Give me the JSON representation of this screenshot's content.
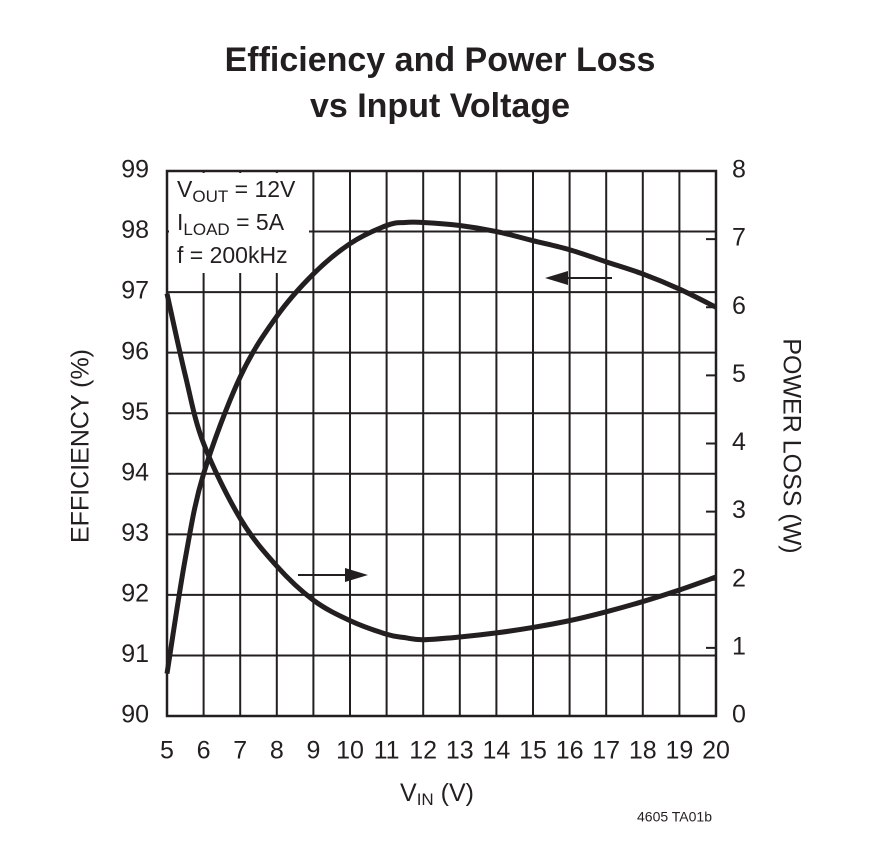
{
  "chart_data": {
    "type": "line",
    "title": [
      "Efficiency and Power Loss",
      "vs Input Voltage"
    ],
    "x_label": [
      {
        "text": "V"
      },
      {
        "text": "IN",
        "sub": true
      },
      {
        "text": " (V)"
      }
    ],
    "y_label": "EFFICIENCY (%)",
    "y2_label": "POWER LOSS (W)",
    "annotations": [
      [
        {
          "text": "V"
        },
        {
          "text": "OUT",
          "sub": true
        },
        {
          "text": " = 12V"
        }
      ],
      [
        {
          "text": "I"
        },
        {
          "text": "LOAD",
          "sub": true
        },
        {
          "text": " = 5A"
        }
      ],
      [
        {
          "text": "f = 200kHz"
        }
      ]
    ],
    "footnote": "4605 TA01b",
    "x": [
      5,
      5.5,
      6,
      7,
      8,
      9,
      10,
      11,
      11.5,
      12,
      13,
      14,
      15,
      16,
      17,
      18,
      19,
      20
    ],
    "series": [
      {
        "color": "#231f20",
        "values": [
          90.7,
          92.6,
          94.0,
          95.6,
          96.6,
          97.3,
          97.8,
          98.1,
          98.15,
          98.15,
          98.1,
          98.0,
          97.85,
          97.7,
          97.5,
          97.3,
          97.05,
          96.75
        ]
      },
      {
        "color": "#231f20",
        "axis": "y2",
        "values": [
          6.2,
          5.0,
          4.0,
          2.9,
          2.2,
          1.7,
          1.4,
          1.2,
          1.15,
          1.12,
          1.16,
          1.22,
          1.3,
          1.4,
          1.53,
          1.68,
          1.85,
          2.04
        ]
      }
    ],
    "xlim": [
      5,
      20
    ],
    "xticks": [
      5,
      6,
      7,
      8,
      9,
      10,
      11,
      12,
      13,
      14,
      15,
      16,
      17,
      18,
      19,
      20
    ],
    "ylim": [
      90,
      99
    ],
    "yticks": [
      90,
      91,
      92,
      93,
      94,
      95,
      96,
      97,
      98,
      99
    ],
    "y2lim": [
      0,
      8
    ],
    "y2ticks": [
      0,
      1,
      2,
      3,
      4,
      5,
      6,
      7,
      8
    ],
    "grid": true
  }
}
